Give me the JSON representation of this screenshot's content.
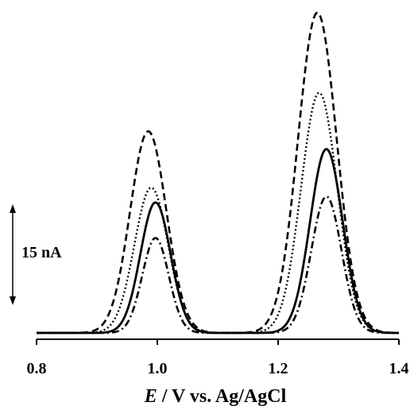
{
  "chart_data": {
    "type": "line",
    "title": "",
    "xlabel_italic": "E",
    "xlabel_rest": " / V vs. Ag/AgCl",
    "ylabel": "",
    "xlim": [
      0.8,
      1.4
    ],
    "ylim": [
      0,
      54
    ],
    "x_ticks": [
      "0.8",
      "1.0",
      "1.2",
      "1.4"
    ],
    "grid": false,
    "scale_bar": {
      "label": "15 nA",
      "value": 15
    },
    "series": [
      {
        "style": "dashed",
        "peaks": [
          [
            0.985,
            34.0,
            0.03
          ],
          [
            1.265,
            54.0,
            0.032
          ]
        ]
      },
      {
        "style": "dotted",
        "peaks": [
          [
            0.99,
            24.5,
            0.028
          ],
          [
            1.268,
            40.5,
            0.03
          ]
        ]
      },
      {
        "style": "solid",
        "peaks": [
          [
            0.997,
            22.0,
            0.025
          ],
          [
            1.28,
            31.0,
            0.027
          ]
        ]
      },
      {
        "style": "dash-dot",
        "peaks": [
          [
            0.997,
            16.0,
            0.022
          ],
          [
            1.28,
            23.0,
            0.025
          ]
        ]
      }
    ]
  }
}
